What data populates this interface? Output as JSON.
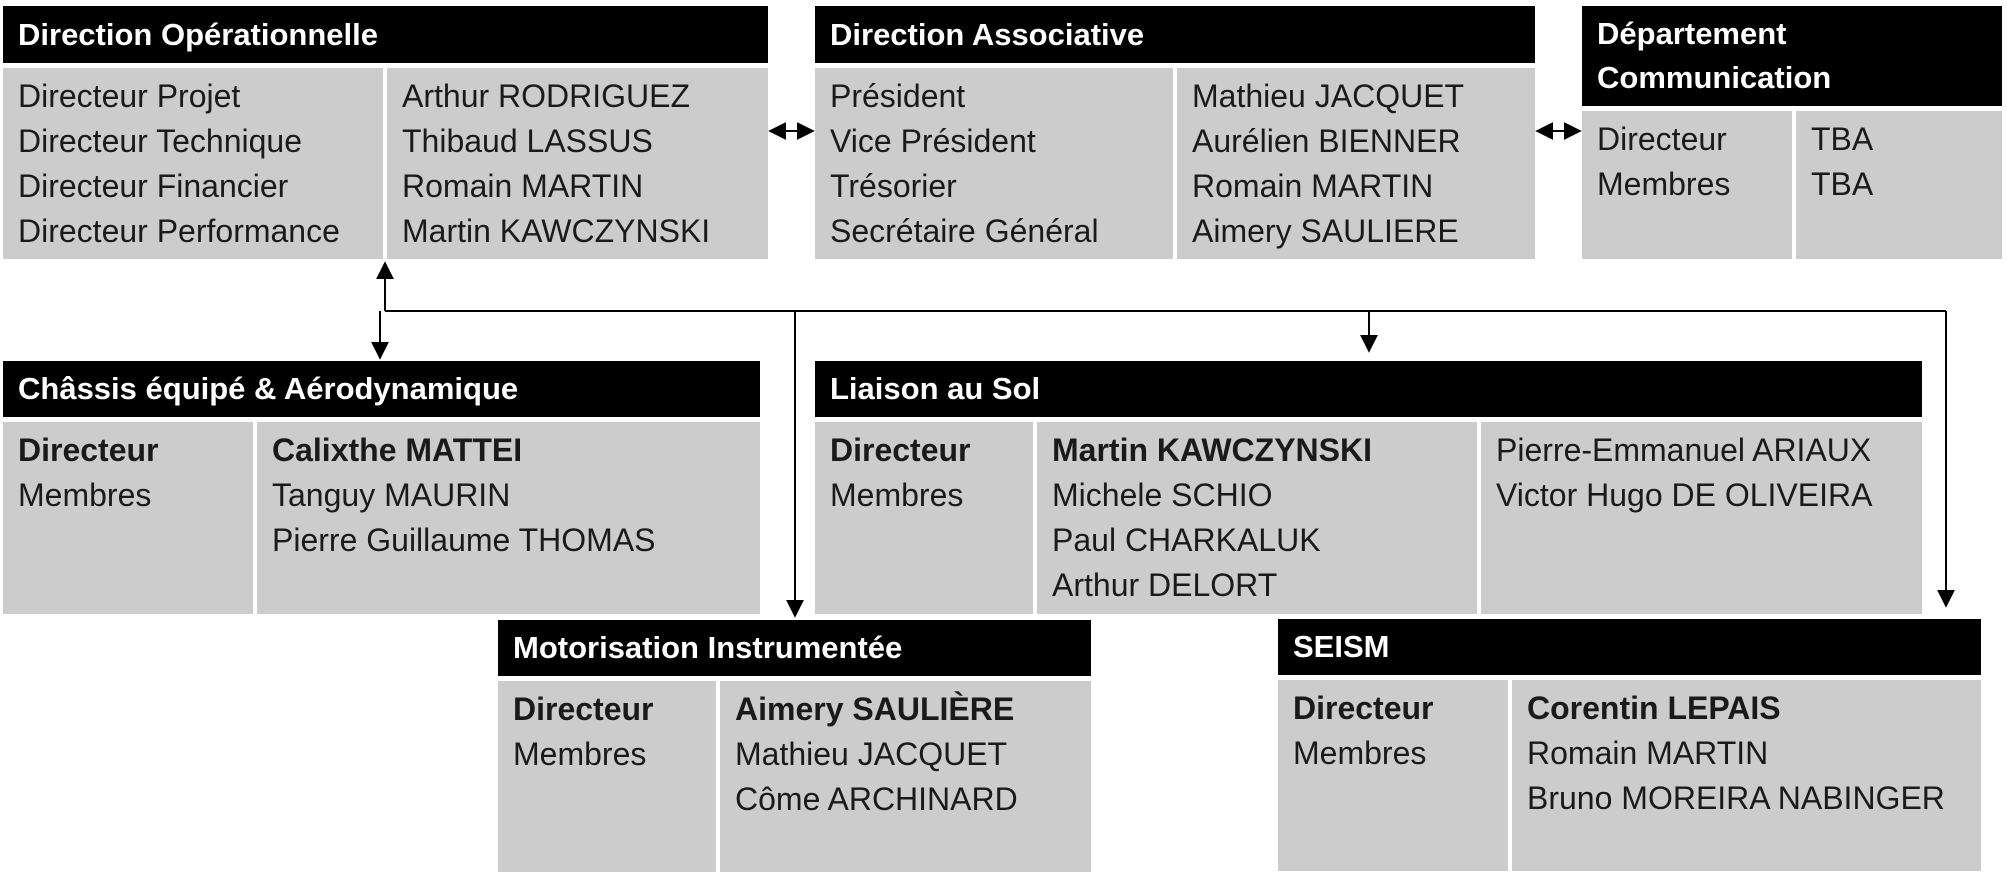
{
  "direction_operationnelle": {
    "title": "Direction Opérationnelle",
    "roles": [
      "Directeur Projet",
      "Directeur Technique",
      "Directeur Financier",
      "Directeur Performance"
    ],
    "names": [
      "Arthur RODRIGUEZ",
      "Thibaud LASSUS",
      "Romain MARTIN",
      "Martin KAWCZYNSKI"
    ]
  },
  "direction_associative": {
    "title": "Direction Associative",
    "roles": [
      "Président",
      "Vice Président",
      "Trésorier",
      "Secrétaire Général"
    ],
    "names": [
      "Mathieu JACQUET",
      "Aurélien BIENNER",
      "Romain MARTIN",
      "Aimery SAULIERE"
    ]
  },
  "departement_communication": {
    "title_line1": "Département",
    "title_line2": "Communication",
    "roles": [
      "Directeur",
      "Membres"
    ],
    "names": [
      "TBA",
      "TBA"
    ]
  },
  "chassis": {
    "title": "Châssis équipé & Aérodynamique",
    "roles": [
      "Directeur",
      "Membres"
    ],
    "names": [
      "Calixthe MATTEI",
      "Tanguy MAURIN",
      "Pierre Guillaume THOMAS"
    ]
  },
  "liaison": {
    "title": "Liaison au Sol",
    "roles": [
      "Directeur",
      "Membres"
    ],
    "names": [
      "Martin KAWCZYNSKI",
      "Michele SCHIO",
      "Paul CHARKALUK",
      "Arthur DELORT"
    ],
    "names_extra": [
      "Pierre-Emmanuel ARIAUX",
      "Victor Hugo DE OLIVEIRA"
    ]
  },
  "motorisation": {
    "title": "Motorisation Instrumentée",
    "roles": [
      "Directeur",
      "Membres"
    ],
    "names": [
      "Aimery SAULIÈRE",
      "Mathieu JACQUET",
      "Côme ARCHINARD"
    ]
  },
  "seism": {
    "title": "SEISM",
    "roles": [
      "Directeur",
      "Membres"
    ],
    "names": [
      "Corentin LEPAIS",
      "Romain MARTIN",
      "Bruno MOREIRA NABINGER"
    ]
  }
}
